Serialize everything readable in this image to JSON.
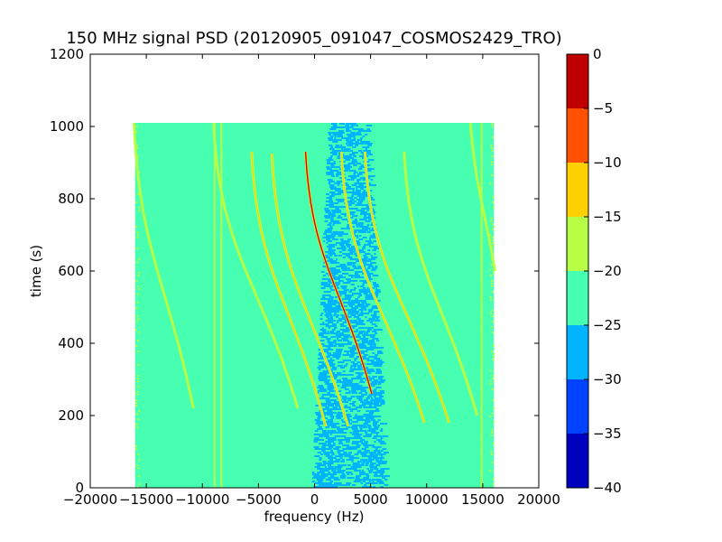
{
  "chart_data": {
    "type": "heatmap",
    "title": "150 MHz signal PSD (20120905_091047_COSMOS2429_TRO)",
    "xlabel": "frequency (Hz)",
    "ylabel": "time (s)",
    "xlim": [
      -20000,
      20000
    ],
    "ylim": [
      0,
      1200
    ],
    "xticks": [
      -20000,
      -15000,
      -10000,
      -5000,
      0,
      5000,
      10000,
      15000,
      20000
    ],
    "xtick_labels": [
      "−20000",
      "−15000",
      "−10000",
      "−5000",
      "0",
      "5000",
      "10000",
      "15000",
      "20000"
    ],
    "yticks": [
      0,
      200,
      400,
      600,
      800,
      1000,
      1200
    ],
    "ytick_labels": [
      "0",
      "200",
      "400",
      "600",
      "800",
      "1000",
      "1200"
    ],
    "grid": false,
    "data_extent": {
      "freq_min": -16000,
      "freq_max": 16000,
      "time_min": 0,
      "time_max": 1010
    },
    "noisy_band": {
      "freq_min": 0,
      "freq_max": 6000
    },
    "colorbar": {
      "levels": [
        -40,
        -35,
        -30,
        -25,
        -20,
        -15,
        -10,
        -5,
        0
      ],
      "tick_labels": [
        "−40",
        "−35",
        "−30",
        "−25",
        "−20",
        "−15",
        "−10",
        "−5",
        "0"
      ],
      "colors": [
        "#0000bf",
        "#0044ff",
        "#00b4ff",
        "#46ffb0",
        "#b6ff46",
        "#ffd000",
        "#ff5100",
        "#bf0000"
      ]
    },
    "vertical_lines": [
      {
        "freq": -8900,
        "t0": 0,
        "t1": 1010
      },
      {
        "freq": -8300,
        "t0": 0,
        "t1": 1010
      },
      {
        "freq": 14900,
        "t0": 0,
        "t1": 1010
      }
    ],
    "tracks": [
      {
        "f_start": -16100,
        "f_end": -10800,
        "t_start": 1010,
        "t_end": 220,
        "f_mid": -13400,
        "strength": "medium"
      },
      {
        "f_start": -9000,
        "f_end": -1500,
        "t_start": 1010,
        "t_end": 220,
        "f_mid": -5200,
        "strength": "medium"
      },
      {
        "f_start": -5600,
        "f_end": 1000,
        "t_start": 930,
        "t_end": 170,
        "f_mid": -2200,
        "strength": "strong"
      },
      {
        "f_start": -3800,
        "f_end": 3000,
        "t_start": 925,
        "t_end": 170,
        "f_mid": -600,
        "strength": "strong"
      },
      {
        "f_start": -800,
        "f_end": 5100,
        "t_start": 930,
        "t_end": 260,
        "f_mid": 2200,
        "strength": "peak"
      },
      {
        "f_start": 2400,
        "f_end": 9800,
        "t_start": 930,
        "t_end": 180,
        "f_mid": 6000,
        "strength": "strong"
      },
      {
        "f_start": 4500,
        "f_end": 12000,
        "t_start": 930,
        "t_end": 180,
        "f_mid": 8200,
        "strength": "strong"
      },
      {
        "f_start": 8000,
        "f_end": 14500,
        "t_start": 930,
        "t_end": 200,
        "f_mid": 11200,
        "strength": "medium"
      },
      {
        "f_start": 13900,
        "f_end": 16100,
        "t_start": 1010,
        "t_end": 600,
        "f_mid": 15000,
        "strength": "medium"
      }
    ]
  }
}
